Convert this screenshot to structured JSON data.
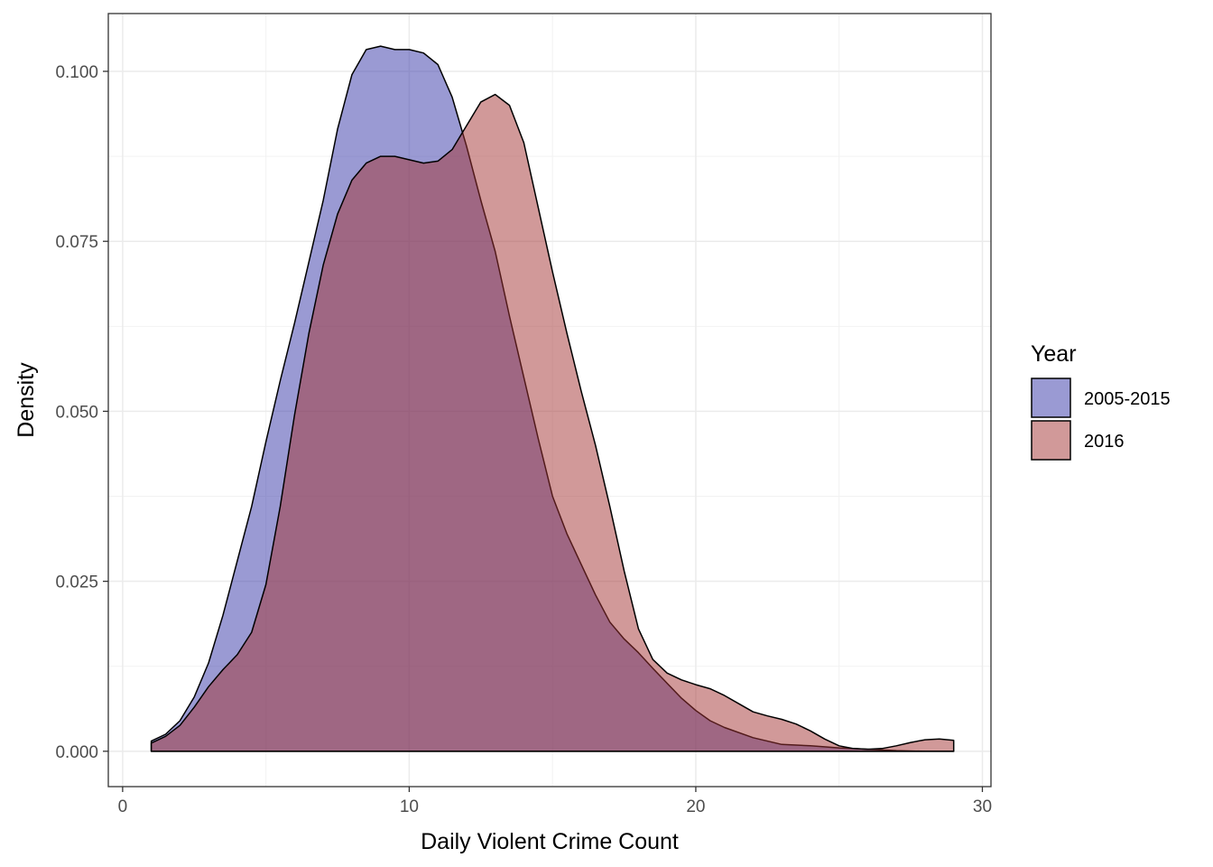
{
  "chart_data": {
    "type": "area",
    "subtype": "density",
    "title": "",
    "xlabel": "Daily Violent Crime Count",
    "ylabel": "Density",
    "xlim": [
      -0.5,
      30.3
    ],
    "ylim": [
      -0.0052,
      0.1085
    ],
    "x_ticks": [
      0,
      10,
      20,
      30
    ],
    "x_tick_labels": [
      "0",
      "10",
      "20",
      "30"
    ],
    "y_ticks": [
      0,
      0.025,
      0.05,
      0.075,
      0.1
    ],
    "y_tick_labels": [
      "0.000",
      "0.025",
      "0.050",
      "0.075",
      "0.100"
    ],
    "grid": true,
    "legend": {
      "title": "Year",
      "position": "right",
      "entries": [
        "2005-2015",
        "2016"
      ]
    },
    "series": [
      {
        "name": "2005-2015",
        "color": "#3636A8",
        "fill_opacity": 0.5,
        "points": [
          [
            1,
            0.0015
          ],
          [
            1.5,
            0.0025
          ],
          [
            2,
            0.0045
          ],
          [
            2.5,
            0.008
          ],
          [
            3,
            0.013
          ],
          [
            3.5,
            0.02
          ],
          [
            4,
            0.028
          ],
          [
            4.5,
            0.036
          ],
          [
            5,
            0.0455
          ],
          [
            5.5,
            0.0545
          ],
          [
            6,
            0.063
          ],
          [
            6.5,
            0.072
          ],
          [
            7,
            0.081
          ],
          [
            7.5,
            0.0915
          ],
          [
            8,
            0.0995
          ],
          [
            8.5,
            0.1032
          ],
          [
            9,
            0.1037
          ],
          [
            9.5,
            0.1032
          ],
          [
            10,
            0.1032
          ],
          [
            10.5,
            0.1027
          ],
          [
            11,
            0.101
          ],
          [
            11.5,
            0.0962
          ],
          [
            12,
            0.089
          ],
          [
            12.5,
            0.081
          ],
          [
            13,
            0.0735
          ],
          [
            13.5,
            0.064
          ],
          [
            14,
            0.055
          ],
          [
            14.5,
            0.046
          ],
          [
            15,
            0.0375
          ],
          [
            15.5,
            0.032
          ],
          [
            16,
            0.0275
          ],
          [
            16.5,
            0.023
          ],
          [
            17,
            0.019
          ],
          [
            17.5,
            0.0165
          ],
          [
            18,
            0.0145
          ],
          [
            18.5,
            0.0122
          ],
          [
            19,
            0.01
          ],
          [
            19.5,
            0.0078
          ],
          [
            20,
            0.006
          ],
          [
            20.5,
            0.0045
          ],
          [
            21,
            0.0035
          ],
          [
            22,
            0.002
          ],
          [
            23,
            0.001
          ],
          [
            24,
            0.0008
          ],
          [
            25,
            0.0005
          ],
          [
            26,
            0.0003
          ],
          [
            27,
            0.0001
          ],
          [
            28,
            0.0
          ],
          [
            29,
            0.0
          ]
        ]
      },
      {
        "name": "2016",
        "color": "#A33333",
        "fill_opacity": 0.5,
        "points": [
          [
            1,
            0.0012
          ],
          [
            1.5,
            0.0022
          ],
          [
            2,
            0.0038
          ],
          [
            2.5,
            0.0065
          ],
          [
            3,
            0.0095
          ],
          [
            3.5,
            0.012
          ],
          [
            4,
            0.0142
          ],
          [
            4.5,
            0.0175
          ],
          [
            5,
            0.0245
          ],
          [
            5.5,
            0.036
          ],
          [
            6,
            0.0495
          ],
          [
            6.5,
            0.0615
          ],
          [
            7,
            0.0715
          ],
          [
            7.5,
            0.079
          ],
          [
            8,
            0.084
          ],
          [
            8.5,
            0.0865
          ],
          [
            9,
            0.0875
          ],
          [
            9.5,
            0.0875
          ],
          [
            10,
            0.087
          ],
          [
            10.5,
            0.0865
          ],
          [
            11,
            0.0868
          ],
          [
            11.5,
            0.0885
          ],
          [
            12,
            0.092
          ],
          [
            12.5,
            0.0955
          ],
          [
            13,
            0.0966
          ],
          [
            13.5,
            0.095
          ],
          [
            14,
            0.0895
          ],
          [
            14.5,
            0.08
          ],
          [
            15,
            0.0705
          ],
          [
            15.5,
            0.0615
          ],
          [
            16,
            0.053
          ],
          [
            16.5,
            0.045
          ],
          [
            17,
            0.036
          ],
          [
            17.5,
            0.0265
          ],
          [
            18,
            0.018
          ],
          [
            18.5,
            0.0135
          ],
          [
            19,
            0.0115
          ],
          [
            19.5,
            0.0105
          ],
          [
            20,
            0.0098
          ],
          [
            20.5,
            0.0092
          ],
          [
            21,
            0.0082
          ],
          [
            21.5,
            0.007
          ],
          [
            22,
            0.0058
          ],
          [
            22.5,
            0.0052
          ],
          [
            23,
            0.0047
          ],
          [
            23.5,
            0.004
          ],
          [
            24,
            0.003
          ],
          [
            24.5,
            0.0018
          ],
          [
            25,
            0.0008
          ],
          [
            25.5,
            0.0004
          ],
          [
            26,
            0.0003
          ],
          [
            26.5,
            0.0004
          ],
          [
            27,
            0.0008
          ],
          [
            27.5,
            0.0013
          ],
          [
            28,
            0.0017
          ],
          [
            28.5,
            0.0018
          ],
          [
            29,
            0.0016
          ]
        ]
      }
    ]
  }
}
